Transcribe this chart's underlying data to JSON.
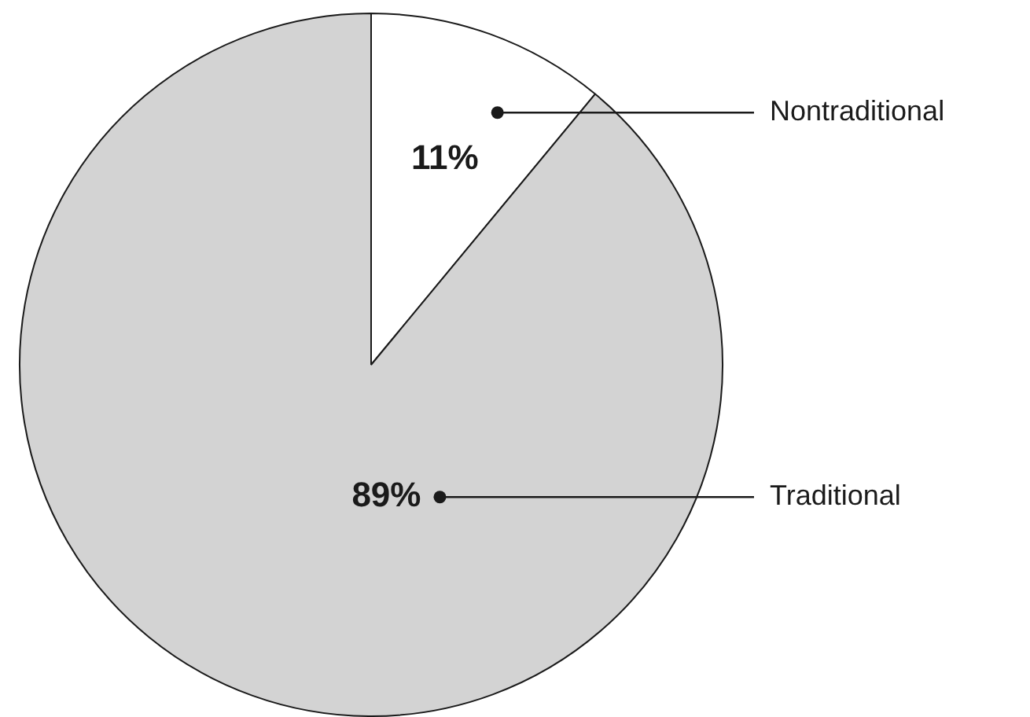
{
  "chart_data": {
    "type": "pie",
    "categories": [
      "Nontraditional",
      "Traditional"
    ],
    "values": [
      11,
      89
    ],
    "colors": [
      "#ffffff",
      "#d3d3d3"
    ],
    "value_labels": [
      "11%",
      "89%"
    ],
    "legend": false
  }
}
